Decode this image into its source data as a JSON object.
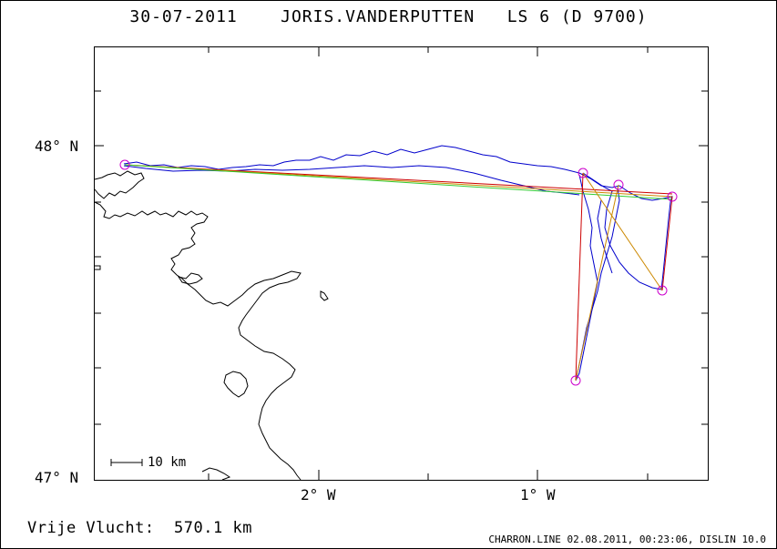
{
  "header": {
    "date": "30-07-2011",
    "pilot": "JORIS.VANDERPUTTEN",
    "glider": "LS 6 (D 9700)"
  },
  "axes": {
    "lat_labels": [
      "48° N",
      "47° N"
    ],
    "lon_labels": [
      "2° W",
      "1° W"
    ]
  },
  "scale": {
    "label": "10 km"
  },
  "footer": {
    "distance_label": "Vrije Vlucht:",
    "distance_value": "570.1 km",
    "credit": "CHARRON.LINE 02.08.2011, 00:23:06, DISLIN 10.0"
  },
  "colors": {
    "track": "#0000cc",
    "task_red": "#cc0000",
    "task_orange": "#cc8800",
    "task_green": "#33cc33",
    "turnpoint": "#cc00cc",
    "coast": "#000000",
    "frame": "#000000"
  }
}
